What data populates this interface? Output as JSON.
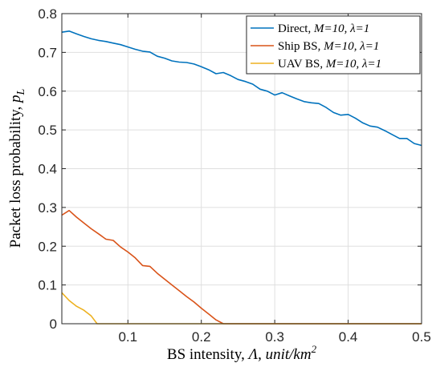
{
  "chart_data": {
    "type": "line",
    "xlabel": {
      "prefix": "BS intensity, ",
      "symbol": "Λ",
      "unit_text": ", unit/km",
      "unit_exp": "2"
    },
    "ylabel": {
      "text": "Packet loss probability, ",
      "symbol": "p",
      "sub": "L"
    },
    "xlim": [
      0.01,
      0.5
    ],
    "ylim": [
      0,
      0.8
    ],
    "xticks": [
      0.1,
      0.2,
      0.3,
      0.4,
      0.5
    ],
    "xtick_labels": [
      "0.1",
      "0.2",
      "0.3",
      "0.4",
      "0.5"
    ],
    "yticks": [
      0,
      0.1,
      0.2,
      0.3,
      0.4,
      0.5,
      0.6,
      0.7,
      0.8
    ],
    "ytick_labels": [
      "0",
      "0.1",
      "0.2",
      "0.3",
      "0.4",
      "0.5",
      "0.6",
      "0.7",
      "0.8"
    ],
    "grid": true,
    "legend_position": "top-right",
    "series": [
      {
        "name": "Direct",
        "label_plain": "Direct,  ",
        "label_math": "M=10, λ=1",
        "color": "#0072BD",
        "x": [
          0.01,
          0.02,
          0.03,
          0.04,
          0.05,
          0.06,
          0.07,
          0.08,
          0.09,
          0.1,
          0.11,
          0.12,
          0.13,
          0.14,
          0.15,
          0.16,
          0.17,
          0.18,
          0.19,
          0.2,
          0.21,
          0.22,
          0.23,
          0.24,
          0.25,
          0.26,
          0.27,
          0.28,
          0.29,
          0.3,
          0.31,
          0.32,
          0.33,
          0.34,
          0.35,
          0.36,
          0.37,
          0.38,
          0.39,
          0.4,
          0.41,
          0.42,
          0.43,
          0.44,
          0.45,
          0.46,
          0.47,
          0.48,
          0.49,
          0.5
        ],
        "y": [
          0.752,
          0.755,
          0.748,
          0.741,
          0.735,
          0.731,
          0.728,
          0.724,
          0.72,
          0.714,
          0.708,
          0.703,
          0.701,
          0.69,
          0.685,
          0.678,
          0.675,
          0.674,
          0.67,
          0.663,
          0.655,
          0.645,
          0.648,
          0.64,
          0.63,
          0.625,
          0.618,
          0.605,
          0.6,
          0.59,
          0.596,
          0.588,
          0.58,
          0.573,
          0.57,
          0.568,
          0.558,
          0.545,
          0.538,
          0.54,
          0.53,
          0.518,
          0.51,
          0.507,
          0.498,
          0.488,
          0.478,
          0.478,
          0.465,
          0.46
        ]
      },
      {
        "name": "Ship BS",
        "label_plain": "Ship BS,  ",
        "label_math": "M=10, λ=1",
        "color": "#D95319",
        "x": [
          0.01,
          0.02,
          0.03,
          0.04,
          0.05,
          0.06,
          0.07,
          0.08,
          0.09,
          0.1,
          0.11,
          0.12,
          0.13,
          0.14,
          0.15,
          0.16,
          0.17,
          0.18,
          0.19,
          0.2,
          0.21,
          0.22,
          0.23,
          0.24,
          0.3,
          0.4,
          0.5
        ],
        "y": [
          0.28,
          0.292,
          0.275,
          0.26,
          0.245,
          0.232,
          0.218,
          0.215,
          0.198,
          0.185,
          0.17,
          0.15,
          0.148,
          0.13,
          0.115,
          0.1,
          0.085,
          0.07,
          0.056,
          0.04,
          0.025,
          0.01,
          0.0,
          0.0,
          0.0,
          0.0,
          0.0
        ]
      },
      {
        "name": "UAV BS",
        "label_plain": "UAV BS,  ",
        "label_math": "M=10, λ=1",
        "color": "#EDB120",
        "x": [
          0.01,
          0.02,
          0.03,
          0.04,
          0.05,
          0.058,
          0.07,
          0.1,
          0.2,
          0.3,
          0.4,
          0.5
        ],
        "y": [
          0.08,
          0.06,
          0.045,
          0.035,
          0.02,
          0.0,
          0.0,
          0.0,
          0.0,
          0.0,
          0.0,
          0.0
        ]
      }
    ]
  }
}
